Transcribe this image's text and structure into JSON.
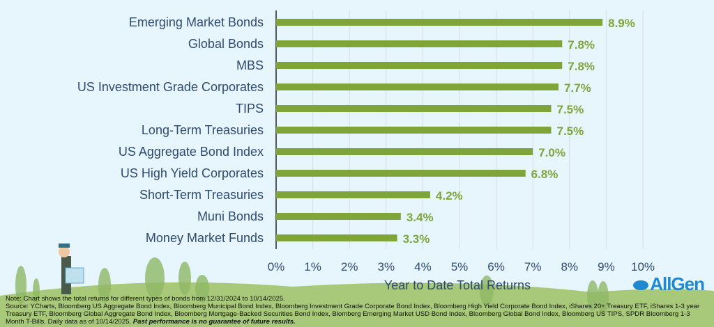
{
  "chart_data": {
    "type": "bar",
    "orientation": "horizontal",
    "title": "",
    "xlabel": "Year to Date Total Returns",
    "ylabel": "",
    "categories": [
      "Emerging Market Bonds",
      "Global Bonds",
      "MBS",
      "US Investment Grade Corporates",
      "TIPS",
      "Long-Term Treasuries",
      "US Aggregate Bond Index",
      "US High Yield Corporates",
      "Short-Term Treasuries",
      "Muni Bonds",
      "Money Market Funds"
    ],
    "values": [
      8.9,
      7.8,
      7.8,
      7.7,
      7.5,
      7.5,
      7.0,
      6.8,
      4.2,
      3.4,
      3.3
    ],
    "value_labels": [
      "8.9%",
      "7.8%",
      "7.8%",
      "7.7%",
      "7.5%",
      "7.5%",
      "7.0%",
      "6.8%",
      "4.2%",
      "3.4%",
      "3.3%"
    ],
    "xlim": [
      0,
      10
    ],
    "x_ticks": [
      "0%",
      "1%",
      "2%",
      "3%",
      "4%",
      "5%",
      "6%",
      "7%",
      "8%",
      "9%",
      "10%"
    ],
    "grid": true,
    "bar_color": "#7fa53a"
  },
  "footer": {
    "note": "Note: Chart shows the total returns for different types of bonds from 12/31/2024 to 10/14/2025.",
    "source": "Source: YCharts, Bloomberg US Aggregate Bond Index, Bloomberg Municipal Bond Index, Bloomberg Investment Grade Corporate Bond Index, Bloomberg High Yield Corporate Bond Index, iShares 20+ Treasury ETF, iShares 1-3 year Treasury ETF, Bloomberg Global Aggregate Bond Index, Bloomberg Mortgage-Backed Securities Bond Index, Blomberg Emerging Market USD Bond Index, Bloomberg Global Bond Index, Bloomberg US TIPS, SPDR Bloomberg 1-3 Month T-Bills. Daily data as of 10/14/2025.",
    "disclaimer": "Past performance is no guarantee of future results."
  },
  "logo": {
    "text": "AllGen"
  }
}
